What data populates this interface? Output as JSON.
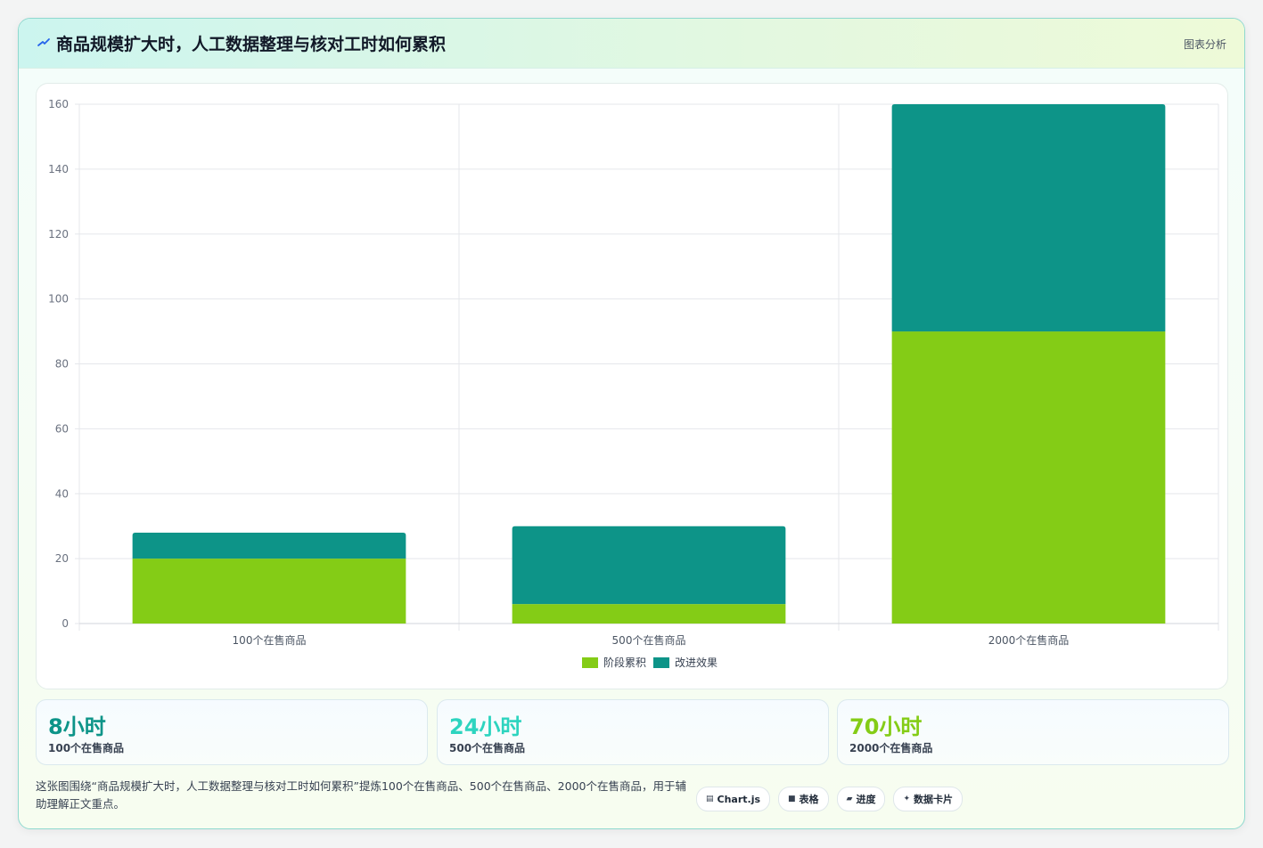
{
  "header": {
    "title": "商品规模扩大时，人工数据整理与核对工时如何累积",
    "tag": "图表分析"
  },
  "colors": {
    "stage": "#84cc16",
    "improve": "#0d9488",
    "stat1": "#0d9488",
    "stat2": "#2dd4bf",
    "stat3": "#84cc16"
  },
  "chart_data": {
    "type": "bar",
    "stacked": true,
    "categories": [
      "100个在售商品",
      "500个在售商品",
      "2000个在售商品"
    ],
    "series": [
      {
        "name": "阶段累积",
        "color": "#84cc16",
        "values": [
          20,
          6,
          90
        ]
      },
      {
        "name": "改进效果",
        "color": "#0d9488",
        "values": [
          8,
          24,
          70
        ]
      }
    ],
    "ylim": [
      0,
      160
    ],
    "yticks": [
      0,
      20,
      40,
      60,
      80,
      100,
      120,
      140,
      160
    ],
    "grid": true,
    "legend": "bottom-center"
  },
  "stats": [
    {
      "value": "8小时",
      "label": "100个在售商品"
    },
    {
      "value": "24小时",
      "label": "500个在售商品"
    },
    {
      "value": "70小时",
      "label": "2000个在售商品"
    }
  ],
  "footer": {
    "text": "这张图围绕“商品规模扩大时，人工数据整理与核对工时如何累积”提炼100个在售商品、500个在售商品、2000个在售商品，用于辅助理解正文重点。",
    "chips": [
      {
        "icon": "chart-icon",
        "glyph": "▤",
        "label": "Chart.js"
      },
      {
        "icon": "table-icon",
        "glyph": "■",
        "label": "表格"
      },
      {
        "icon": "progress-icon",
        "glyph": "▰",
        "label": "进度"
      },
      {
        "icon": "sparkle-icon",
        "glyph": "✦",
        "label": "数据卡片"
      }
    ]
  }
}
